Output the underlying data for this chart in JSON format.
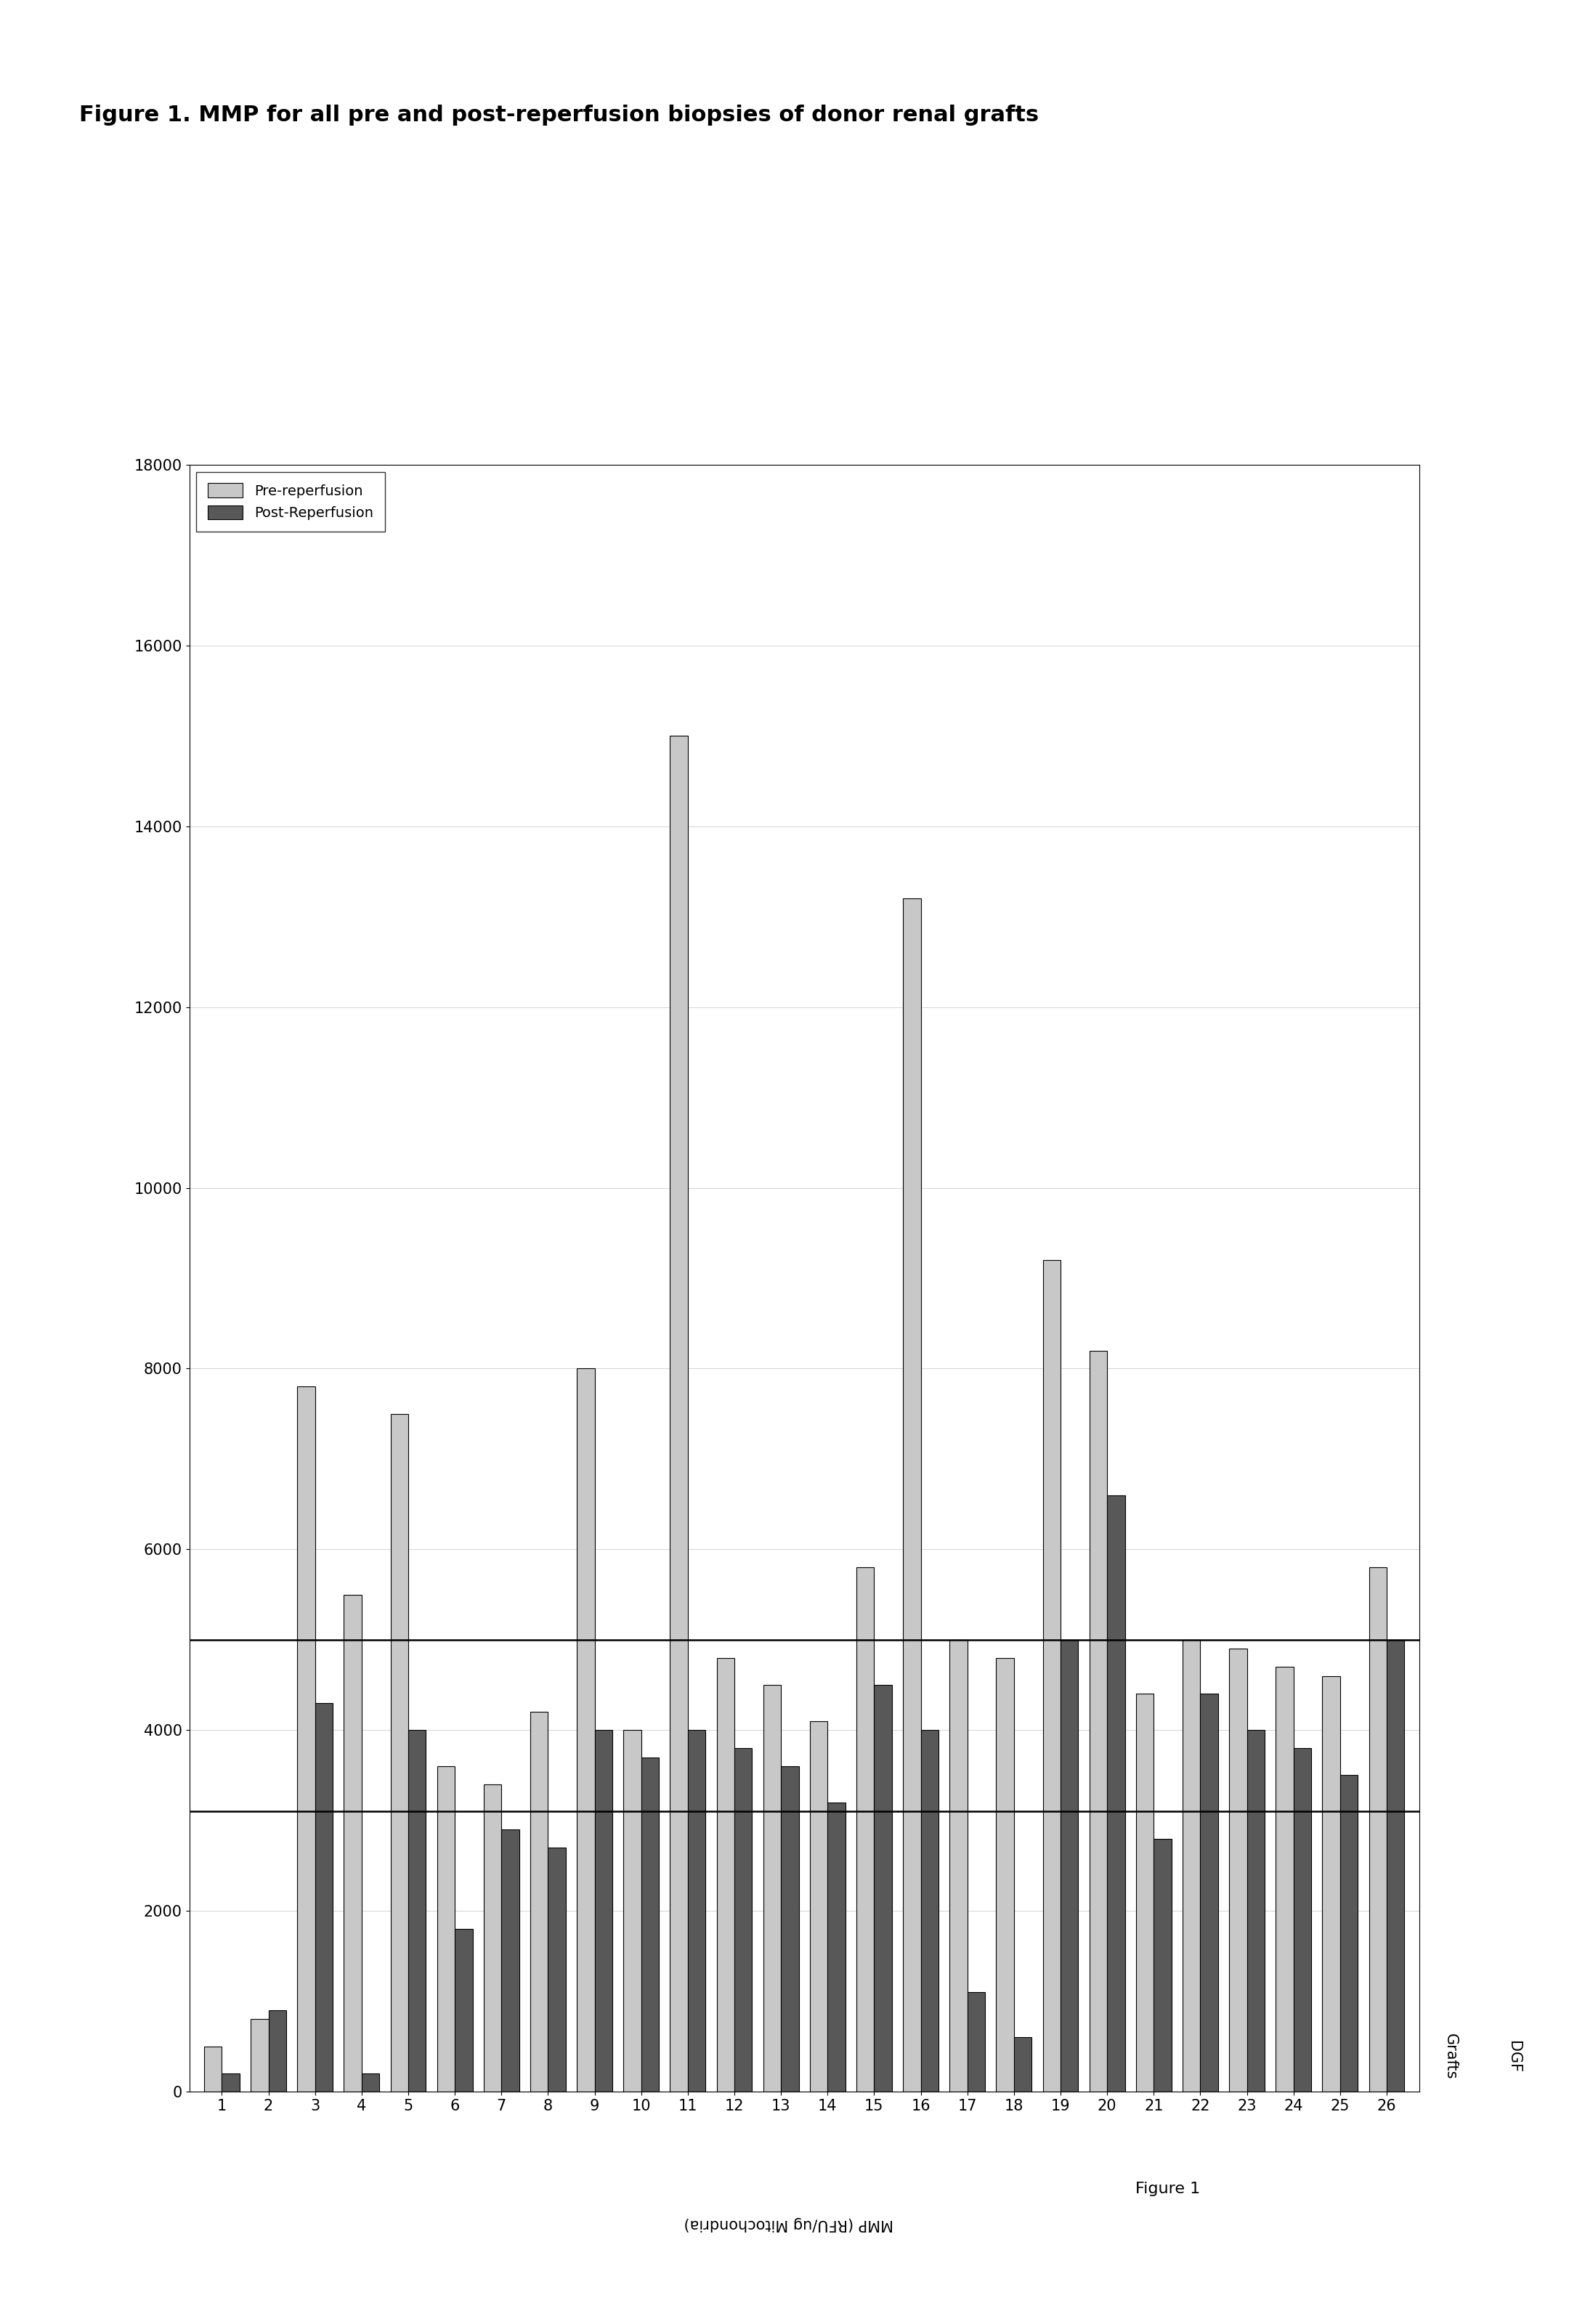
{
  "title": "Figure 1. MMP for all pre and post-reperfusion biopsies of donor renal grafts",
  "subtitle": "Figure 1",
  "ylabel_rotated": "MMP (RFU/ug Mitochondria)",
  "xlim": [
    0,
    18000
  ],
  "xticks": [
    0,
    2000,
    4000,
    6000,
    8000,
    10000,
    12000,
    14000,
    16000,
    18000
  ],
  "xticklabels": [
    "0",
    "2000",
    "4000",
    "6000",
    "8000",
    "10000",
    "12000",
    "14000",
    "16000",
    "18000"
  ],
  "graft_labels": [
    "1",
    "2",
    "3",
    "4",
    "5",
    "6",
    "7",
    "8",
    "9",
    "10",
    "11",
    "12",
    "13",
    "14",
    "15",
    "16",
    "17",
    "18",
    "19",
    "20",
    "21",
    "22",
    "23",
    "24",
    "25",
    "26"
  ],
  "dgf_markers": {
    "2": 1,
    "3": 2,
    "5": 4,
    "7": 6,
    "15 16": 14,
    "21": 20
  },
  "pre_reperfusion": [
    500,
    800,
    7800,
    5500,
    7500,
    3600,
    3400,
    4200,
    8000,
    4000,
    15000,
    4800,
    4500,
    4100,
    5800,
    13200,
    5000,
    4800,
    9200,
    8200,
    4400,
    5000,
    4900,
    4700,
    4600,
    5800
  ],
  "post_reperfusion": [
    200,
    900,
    4300,
    200,
    4000,
    1800,
    2900,
    2700,
    4000,
    3700,
    4000,
    3800,
    3600,
    3200,
    4500,
    4000,
    1100,
    600,
    5000,
    6600,
    2800,
    4400,
    4000,
    3800,
    3500,
    5000
  ],
  "pre_color": "#C8C8C8",
  "post_color": "#585858",
  "line_5000": 5000,
  "line_3100": 3100,
  "line_color": "#000000",
  "bg_color": "#ffffff",
  "legend_labels": [
    "Pre-reperfusion",
    "Post-Reperfusion"
  ],
  "bar_width": 0.38,
  "title_fontsize": 22,
  "tick_fontsize": 15,
  "label_fontsize": 15,
  "legend_fontsize": 14
}
